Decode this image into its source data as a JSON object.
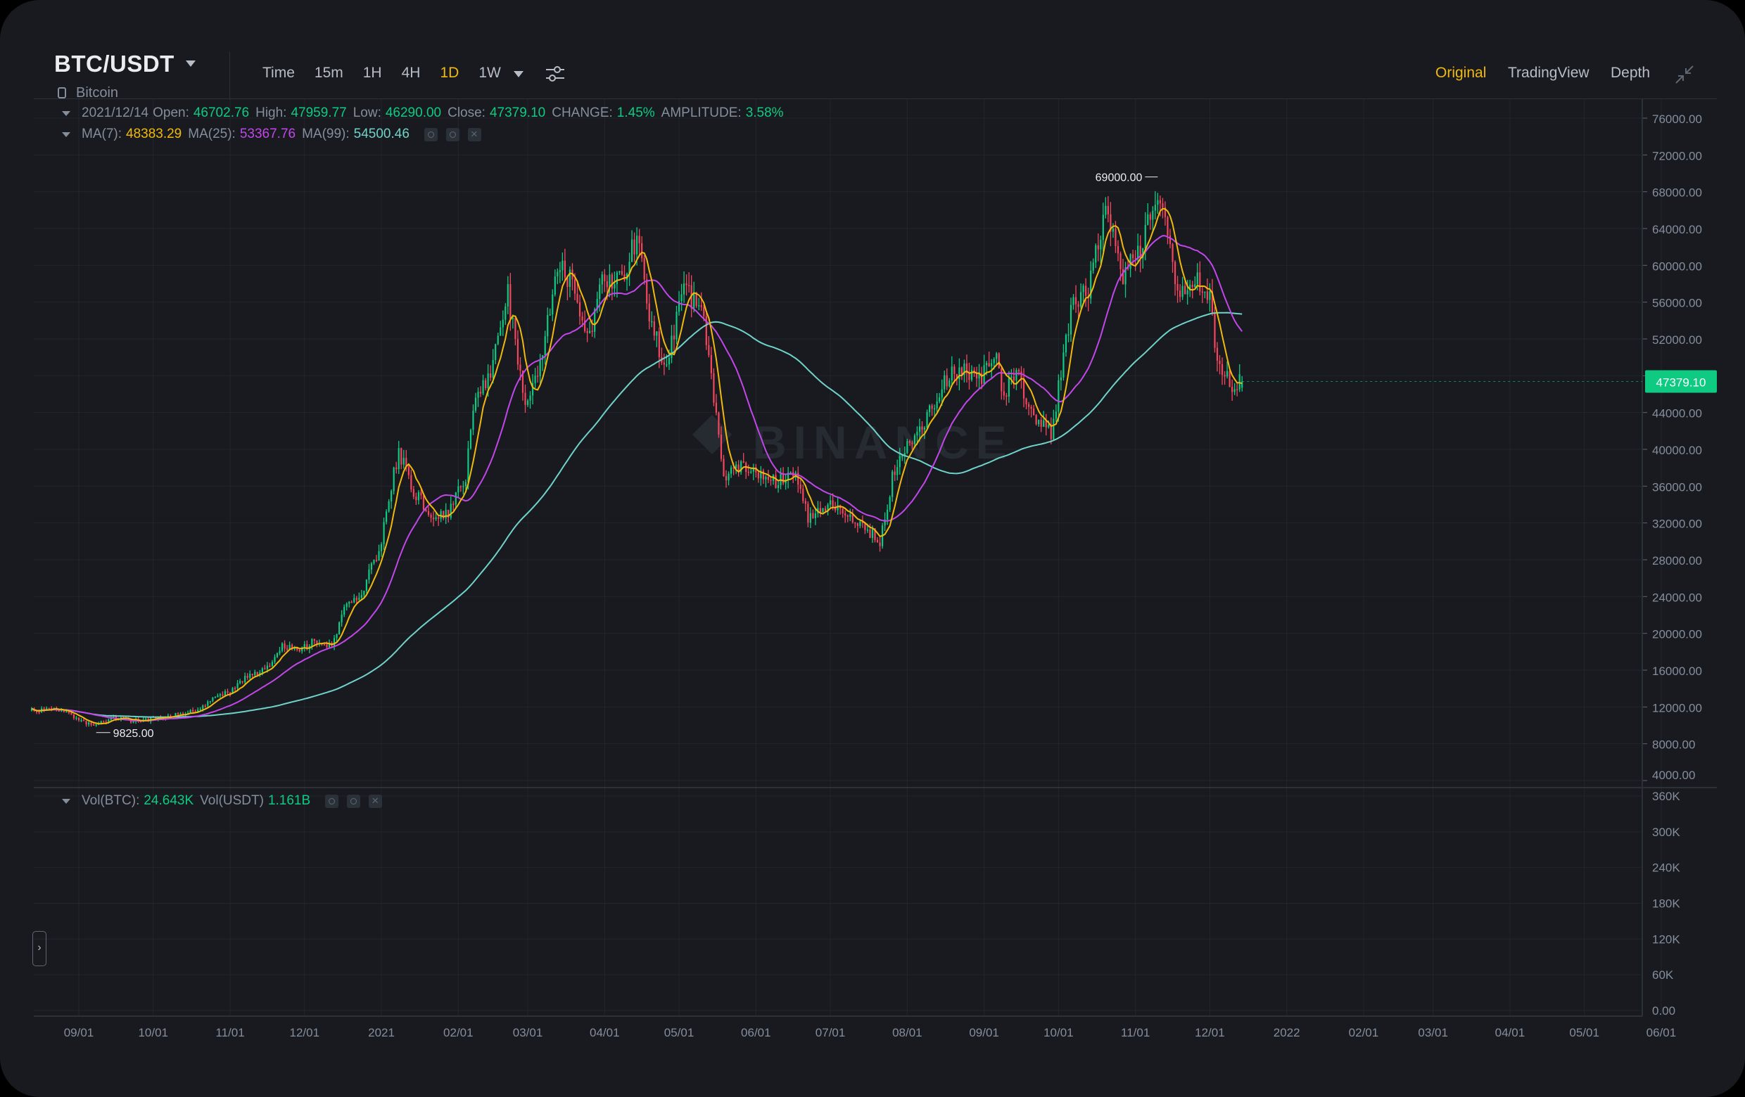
{
  "header": {
    "pair": "BTC/USDT",
    "subtitle": "Bitcoin",
    "intervals": [
      "Time",
      "15m",
      "1H",
      "4H",
      "1D",
      "1W"
    ],
    "active_interval": "1D",
    "views": [
      "Original",
      "TradingView",
      "Depth"
    ],
    "active_view": "Original"
  },
  "ohlc": {
    "date": "2021/12/14",
    "open_label": "Open:",
    "open": "46702.76",
    "high_label": "High:",
    "high": "47959.77",
    "low_label": "Low:",
    "low": "46290.00",
    "close_label": "Close:",
    "close": "47379.10",
    "change_label": "CHANGE:",
    "change": "1.45%",
    "amplitude_label": "AMPLITUDE:",
    "amplitude": "3.58%"
  },
  "ma": {
    "ma7_label": "MA(7):",
    "ma7": "48383.29",
    "ma25_label": "MA(25):",
    "ma25": "53367.76",
    "ma99_label": "MA(99):",
    "ma99": "54500.46"
  },
  "volume": {
    "btc_label": "Vol(BTC):",
    "btc": "24.643K",
    "usdt_label": "Vol(USDT)",
    "usdt": "1.161B"
  },
  "watermark": "BINANCE",
  "colors": {
    "up": "#0ecb81",
    "down": "#f6465d",
    "ma7": "#f0b90b",
    "ma25": "#c147e9",
    "ma99": "#6fd3c9",
    "accent": "#f0b90b",
    "background": "#181a20",
    "grid": "#2b3139"
  },
  "chart_data": {
    "type": "candlestick",
    "title": "BTC/USDT",
    "interval": "1D",
    "ylim": [
      4000,
      76000
    ],
    "y_ticks": [
      "76000.00",
      "72000.00",
      "68000.00",
      "64000.00",
      "60000.00",
      "56000.00",
      "52000.00",
      "48000.00",
      "44000.00",
      "40000.00",
      "36000.00",
      "32000.00",
      "28000.00",
      "24000.00",
      "20000.00",
      "16000.00",
      "12000.00",
      "8000.00",
      "4000.00"
    ],
    "vol_ticks": [
      "360K",
      "300K",
      "240K",
      "180K",
      "120K",
      "60K",
      "0.00"
    ],
    "x_ticks": [
      "09/01",
      "10/01",
      "11/01",
      "12/01",
      "2021",
      "02/01",
      "03/01",
      "04/01",
      "05/01",
      "06/01",
      "07/01",
      "08/01",
      "09/01",
      "10/01",
      "11/01",
      "12/01",
      "2022",
      "02/01",
      "03/01",
      "04/01",
      "05/01",
      "06/01"
    ],
    "last_price": "47379.10",
    "high_marker": "69000.00",
    "low_marker": "9825.00",
    "close_path": [
      [
        "2020-08-13",
        11600
      ],
      [
        "2020-08-20",
        11800
      ],
      [
        "2020-08-27",
        11500
      ],
      [
        "2020-09-03",
        10300
      ],
      [
        "2020-09-08",
        10000
      ],
      [
        "2020-09-15",
        10800
      ],
      [
        "2020-09-23",
        10500
      ],
      [
        "2020-10-01",
        10700
      ],
      [
        "2020-10-10",
        11200
      ],
      [
        "2020-10-18",
        11600
      ],
      [
        "2020-10-25",
        13000
      ],
      [
        "2020-11-01",
        13700
      ],
      [
        "2020-11-08",
        15400
      ],
      [
        "2020-11-15",
        16000
      ],
      [
        "2020-11-22",
        18500
      ],
      [
        "2020-11-29",
        18200
      ],
      [
        "2020-12-05",
        19200
      ],
      [
        "2020-12-12",
        18800
      ],
      [
        "2020-12-17",
        22500
      ],
      [
        "2020-12-24",
        24500
      ],
      [
        "2020-12-31",
        29000
      ],
      [
        "2021-01-08",
        40000
      ],
      [
        "2021-01-13",
        36000
      ],
      [
        "2021-01-20",
        33000
      ],
      [
        "2021-01-28",
        33000
      ],
      [
        "2021-02-04",
        37000
      ],
      [
        "2021-02-08",
        46000
      ],
      [
        "2021-02-14",
        48500
      ],
      [
        "2021-02-21",
        57000
      ],
      [
        "2021-02-28",
        45000
      ],
      [
        "2021-03-05",
        48000
      ],
      [
        "2021-03-13",
        60000
      ],
      [
        "2021-03-20",
        58000
      ],
      [
        "2021-03-25",
        52000
      ],
      [
        "2021-04-01",
        58800
      ],
      [
        "2021-04-08",
        58000
      ],
      [
        "2021-04-14",
        63500
      ],
      [
        "2021-04-19",
        55000
      ],
      [
        "2021-04-25",
        49000
      ],
      [
        "2021-05-03",
        57000
      ],
      [
        "2021-05-10",
        56000
      ],
      [
        "2021-05-13",
        49500
      ],
      [
        "2021-05-19",
        37000
      ],
      [
        "2021-05-26",
        38000
      ],
      [
        "2021-06-03",
        37000
      ],
      [
        "2021-06-10",
        36500
      ],
      [
        "2021-06-17",
        38000
      ],
      [
        "2021-06-22",
        32500
      ],
      [
        "2021-07-01",
        34000
      ],
      [
        "2021-07-08",
        33000
      ],
      [
        "2021-07-15",
        31500
      ],
      [
        "2021-07-21",
        30000
      ],
      [
        "2021-07-26",
        37000
      ],
      [
        "2021-08-01",
        40000
      ],
      [
        "2021-08-08",
        43000
      ],
      [
        "2021-08-15",
        47000
      ],
      [
        "2021-08-22",
        49000
      ],
      [
        "2021-08-29",
        47000
      ],
      [
        "2021-09-06",
        51500
      ],
      [
        "2021-09-08",
        46000
      ],
      [
        "2021-09-15",
        48000
      ],
      [
        "2021-09-21",
        43000
      ],
      [
        "2021-09-28",
        42000
      ],
      [
        "2021-10-02",
        48000
      ],
      [
        "2021-10-06",
        55000
      ],
      [
        "2021-10-13",
        57500
      ],
      [
        "2021-10-20",
        66000
      ],
      [
        "2021-10-27",
        59000
      ],
      [
        "2021-11-03",
        62000
      ],
      [
        "2021-11-10",
        68000
      ],
      [
        "2021-11-14",
        64000
      ],
      [
        "2021-11-18",
        57000
      ],
      [
        "2021-11-25",
        58500
      ],
      [
        "2021-12-01",
        57000
      ],
      [
        "2021-12-04",
        49000
      ],
      [
        "2021-12-10",
        47000
      ],
      [
        "2021-12-14",
        47379
      ]
    ]
  }
}
